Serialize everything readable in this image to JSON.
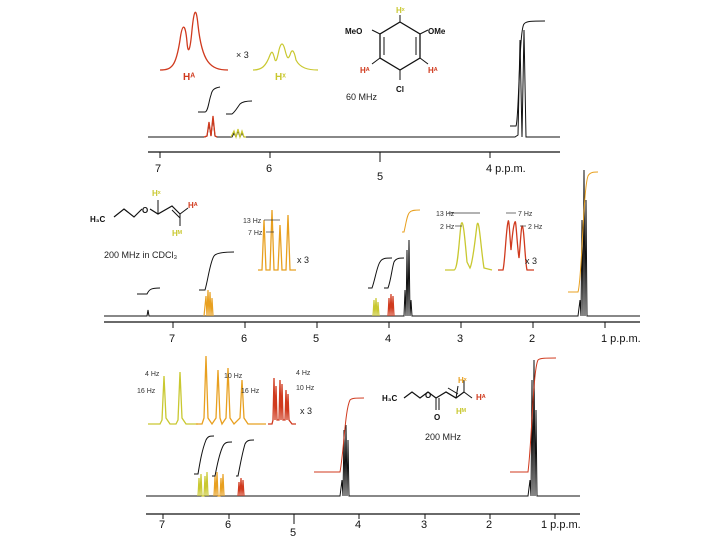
{
  "colors": {
    "red": "#d03a1e",
    "orange": "#e8a020",
    "yellow": "#c9c830",
    "dark": "#111111"
  },
  "panel1": {
    "axis_ticks": [
      {
        "label": "7",
        "ppm": 7
      },
      {
        "label": "6",
        "ppm": 6
      },
      {
        "label": "5",
        "ppm": 5
      },
      {
        "label": "4 p.p.m.",
        "ppm": 4
      }
    ],
    "multiplier_label": "× 3",
    "inset_HA_label": "Hᴬ",
    "inset_HX_label": "Hˣ",
    "freq_label": "60 MHz",
    "molecule": {
      "meo_left": "MeO",
      "ome_right": "OMe",
      "hx": "Hˣ",
      "ha_left": "Hᴬ",
      "ha_right": "Hᴬ",
      "cl": "Cl"
    }
  },
  "panel2": {
    "axis_ticks": [
      {
        "label": "7",
        "ppm": 7
      },
      {
        "label": "6",
        "ppm": 6
      },
      {
        "label": "5",
        "ppm": 5
      },
      {
        "label": "4",
        "ppm": 4
      },
      {
        "label": "3",
        "ppm": 3
      },
      {
        "label": "2",
        "ppm": 2
      },
      {
        "label": "1 p.p.m.",
        "ppm": 1
      }
    ],
    "freq_label": "200 MHz in CDCl₃",
    "molecule": {
      "h3c": "H₃C",
      "o": "O",
      "hx": "Hˣ",
      "ha": "Hᴬ",
      "hm": "Hᴹ"
    },
    "left_inset": {
      "j13": "13 Hz",
      "j7": "7 Hz",
      "mult": "x 3"
    },
    "right_inset": {
      "j13": "13 Hz",
      "j7": "7 Hz",
      "j2a": "2 Hz",
      "j2b": "2 Hz",
      "mult": "x 3"
    }
  },
  "panel3": {
    "axis_ticks": [
      {
        "label": "7",
        "ppm": 7
      },
      {
        "label": "6",
        "ppm": 6
      },
      {
        "label": "5",
        "ppm": 5
      },
      {
        "label": "4",
        "ppm": 4
      },
      {
        "label": "3",
        "ppm": 3
      },
      {
        "label": "2",
        "ppm": 2
      },
      {
        "label": "1 p.p.m.",
        "ppm": 1
      }
    ],
    "freq_label": "200 MHz",
    "mult": "x 3",
    "coupling_labels": {
      "a4": "4 Hz",
      "a16": "16 Hz",
      "b10": "10 Hz",
      "b16": "16 Hz",
      "c4": "4 Hz",
      "c10": "10 Hz"
    },
    "molecule": {
      "h3c": "H₃C",
      "o": "O",
      "carbonyl_o": "O",
      "hx": "Hˣ",
      "ha": "Hᴬ",
      "hm": "Hᴹ"
    }
  }
}
